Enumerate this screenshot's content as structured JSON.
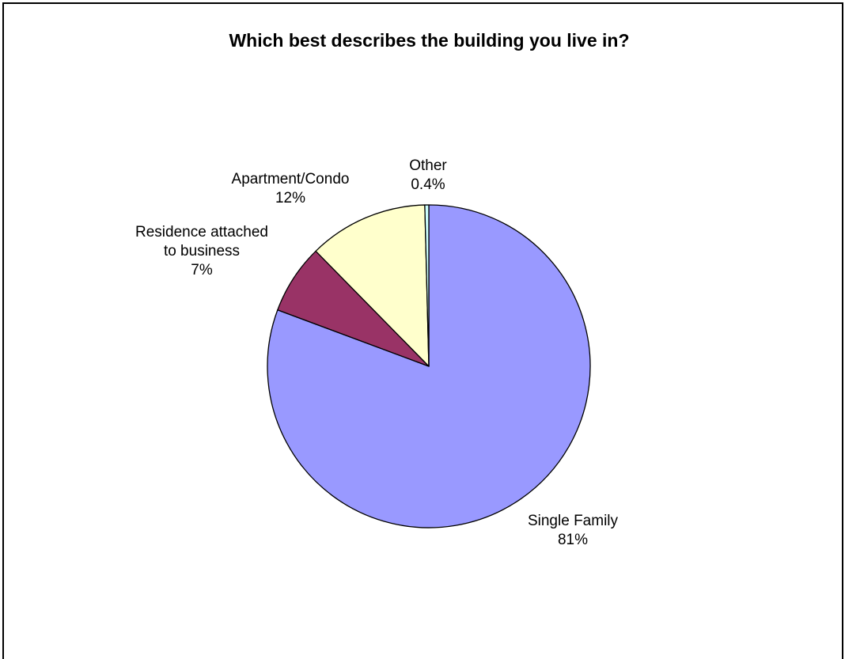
{
  "chart_data": {
    "type": "pie",
    "title": "Which best describes the building you live in?",
    "start_angle_deg": 0,
    "direction": "clockwise",
    "slices": [
      {
        "name": "Single Family",
        "value": 81,
        "value_label": "81%",
        "color": "#9999ff"
      },
      {
        "name": "Residence attached to business",
        "name_lines": [
          "Residence attached",
          "to business"
        ],
        "value": 7,
        "value_label": "7%",
        "color": "#993366"
      },
      {
        "name": "Apartment/Condo",
        "value": 12,
        "value_label": "12%",
        "color": "#ffffcc"
      },
      {
        "name": "Other",
        "value": 0.4,
        "value_label": "0.4%",
        "color": "#ccffff"
      }
    ],
    "legend": "none"
  }
}
